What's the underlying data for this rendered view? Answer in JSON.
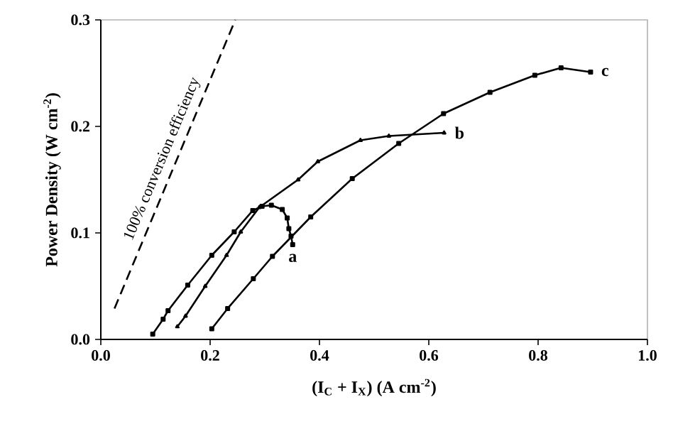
{
  "chart_data": {
    "type": "line",
    "xlabel": "(I$_{C}$ + I$_{X}$) (A cm$^{-2}$)",
    "ylabel": "Power Density (W cm$^{-2}$)",
    "xlim": [
      0,
      1.0
    ],
    "ylim": [
      0,
      0.3
    ],
    "xticks": [
      {
        "value": 0,
        "label": "0.0"
      },
      {
        "value": 0.2,
        "label": "0.2"
      },
      {
        "value": 0.4,
        "label": "0.4"
      },
      {
        "value": 0.6,
        "label": "0.6"
      },
      {
        "value": 0.8,
        "label": "0.8"
      },
      {
        "value": 1.0,
        "label": "1.0"
      }
    ],
    "yticks": [
      {
        "value": 0,
        "label": "0.0"
      },
      {
        "value": 0.1,
        "label": "0.1"
      },
      {
        "value": 0.2,
        "label": "0.2"
      },
      {
        "value": 0.3,
        "label": "0.3"
      }
    ],
    "grid": false,
    "marker": "square",
    "line_style": "solid",
    "series": [
      {
        "name": "100% conversion efficiency",
        "color": "#000000",
        "line_style": "dashed",
        "marker": "none",
        "x": [
          0.025,
          0.246
        ],
        "values": [
          0.029,
          0.3
        ]
      },
      {
        "name": "a",
        "color": "#000000",
        "x": [
          0.095,
          0.114,
          0.123,
          0.159,
          0.203,
          0.244,
          0.278,
          0.295,
          0.312,
          0.332,
          0.341,
          0.344,
          0.348,
          0.351
        ],
        "values": [
          0.005,
          0.019,
          0.027,
          0.051,
          0.079,
          0.101,
          0.121,
          0.125,
          0.126,
          0.122,
          0.114,
          0.104,
          0.097,
          0.089
        ]
      },
      {
        "name": "b",
        "color": "#000000",
        "marker": "triangle",
        "x": [
          0.14,
          0.155,
          0.191,
          0.23,
          0.256,
          0.29,
          0.361,
          0.397,
          0.475,
          0.527,
          0.628
        ],
        "values": [
          0.012,
          0.022,
          0.05,
          0.079,
          0.101,
          0.124,
          0.15,
          0.167,
          0.187,
          0.191,
          0.194
        ]
      },
      {
        "name": "c",
        "color": "#000000",
        "x": [
          0.203,
          0.232,
          0.279,
          0.314,
          0.384,
          0.46,
          0.545,
          0.627,
          0.712,
          0.794,
          0.842,
          0.896
        ],
        "values": [
          0.01,
          0.029,
          0.057,
          0.078,
          0.115,
          0.151,
          0.184,
          0.212,
          0.232,
          0.248,
          0.255,
          0.251
        ]
      }
    ]
  }
}
